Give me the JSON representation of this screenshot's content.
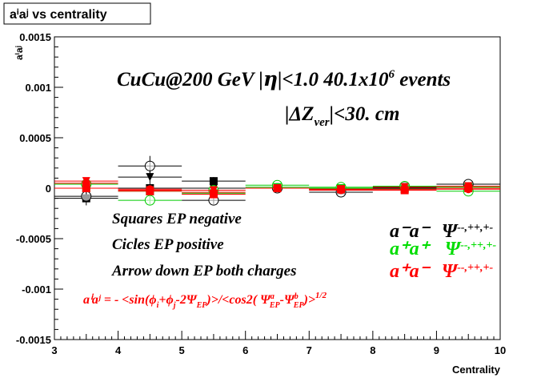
{
  "chart_data": {
    "type": "scatter",
    "title": "aⁱaʲ vs centrality",
    "xlabel": "Centrality",
    "ylabel": "aⁱaʲ",
    "xlim": [
      3,
      10
    ],
    "ylim": [
      -0.0015,
      0.0015
    ],
    "x_ticks": [
      "3",
      "4",
      "5",
      "6",
      "7",
      "8",
      "9",
      "10"
    ],
    "y_ticks": [
      "-0.0015",
      "-0.001",
      "-0.0005",
      "0",
      "0.0005",
      "0.001",
      "0.0015"
    ],
    "x": [
      3.5,
      4.5,
      5.5,
      6.5,
      7.5,
      8.5,
      9.5
    ],
    "x_err": 0.5,
    "grid": false,
    "legend_position": "bottom-left",
    "series": [
      {
        "color": "#000000",
        "marker": "square",
        "values": [
          -0.0001,
          0.0,
          7e-05,
          0.0,
          -2e-05,
          0.0,
          2e-05
        ],
        "err": [
          7e-05,
          5e-05,
          4e-05,
          2e-05,
          2e-05,
          2e-05,
          2e-05
        ]
      },
      {
        "color": "#000000",
        "marker": "circle-open",
        "values": [
          -8e-05,
          0.00022,
          -0.00012,
          0.0,
          -4e-05,
          1e-05,
          4e-05
        ],
        "err": [
          4e-05,
          0.0001,
          4e-05,
          2e-05,
          2e-05,
          2e-05,
          2e-05
        ]
      },
      {
        "color": "#000000",
        "marker": "triangle-down",
        "values": [
          0.0,
          0.00011,
          0.0,
          0.0,
          -1e-05,
          1e-05,
          0.0
        ],
        "err": [
          6e-05,
          6e-05,
          3e-05,
          2e-05,
          2e-05,
          2e-05,
          2e-05
        ]
      },
      {
        "color": "#00cc00",
        "marker": "circle-open",
        "values": [
          4e-05,
          -0.00012,
          -2e-05,
          3e-05,
          1e-05,
          2e-05,
          -3e-05
        ],
        "err": [
          4e-05,
          4e-05,
          3e-05,
          2e-05,
          2e-05,
          2e-05,
          2e-05
        ]
      },
      {
        "color": "#00cc00",
        "marker": "square",
        "values": [
          0.0,
          -3e-05,
          -5e-05,
          1e-05,
          0.0,
          -1e-05,
          1e-05
        ],
        "err": [
          4e-05,
          3e-05,
          3e-05,
          2e-05,
          2e-05,
          2e-05,
          2e-05
        ]
      },
      {
        "color": "#ff0000",
        "marker": "triangle-down",
        "values": [
          7e-05,
          -2e-05,
          -2e-05,
          0.0,
          -1e-05,
          1e-05,
          2e-05
        ],
        "err": [
          3e-05,
          3e-05,
          3e-05,
          2e-05,
          2e-05,
          2e-05,
          2e-05
        ]
      },
      {
        "color": "#ff0000",
        "marker": "circle",
        "values": [
          5e-05,
          -1e-05,
          -4e-05,
          0.0,
          -2e-05,
          -1e-05,
          -1e-05
        ],
        "err": [
          3e-05,
          3e-05,
          3e-05,
          2e-05,
          2e-05,
          2e-05,
          2e-05
        ]
      },
      {
        "color": "#ff0000",
        "marker": "square",
        "values": [
          0.0,
          -3e-05,
          -6e-05,
          0.0,
          -1e-05,
          -2e-05,
          0.0
        ],
        "err": [
          3e-05,
          3e-05,
          3e-05,
          2e-05,
          2e-05,
          2e-05,
          2e-05
        ]
      }
    ],
    "annotations": {
      "header_pre": "CuCu@200 GeV |",
      "header_eta": "η",
      "header_mid": "|<1.0 40.1x10",
      "header_exp": "6",
      "header_post": " events",
      "dz_pre": "|ΔZ",
      "dz_sub": "ver",
      "dz_post": "|<30. cm",
      "note_squares": "Squares EP negative",
      "note_circles": "Cicles EP positive",
      "note_arrows": "Arrow down EP both charges",
      "legend_black": "a⁻a⁻",
      "legend_green": "a⁺a⁺",
      "legend_red": "a⁺a⁻",
      "legend_psi": "Ψ",
      "legend_psi_sup": "--,++,+-",
      "formula_lhs": "aⁱaʲ = - <sin(ϕ",
      "formula_i": "i",
      "formula_plus": "+ϕ",
      "formula_j": "j",
      "formula_mid": "-2Ψ",
      "formula_ep": "EP",
      "formula_cos": ")>/<cos2( Ψ",
      "formula_a": "a",
      "formula_ep2": "EP",
      "formula_minus": "-Ψ",
      "formula_b": "b",
      "formula_ep3": "EP",
      "formula_close": ")>",
      "formula_exp": "1/2"
    }
  }
}
